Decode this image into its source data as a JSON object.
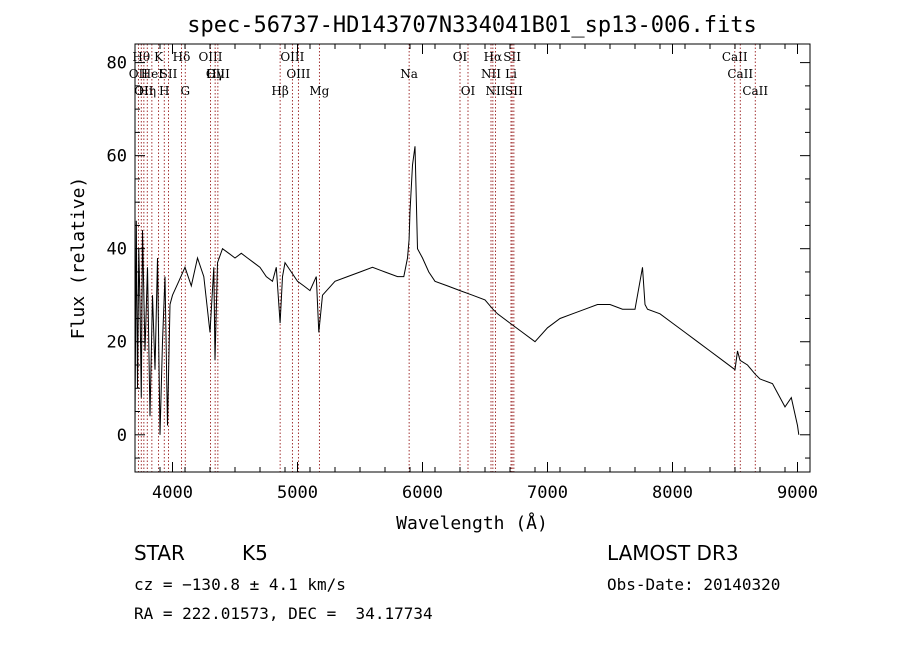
{
  "chart_data": {
    "type": "line",
    "title": "spec-56737-HD143707N334041B01_sp13-006.fits",
    "xlabel": "Wavelength (Å)",
    "ylabel": "Flux (relative)",
    "xlim": [
      3700,
      9100
    ],
    "ylim": [
      -8,
      84
    ],
    "xticks": [
      4000,
      5000,
      6000,
      7000,
      8000,
      9000
    ],
    "yticks": [
      0,
      20,
      40,
      60,
      80
    ],
    "grid": false,
    "line_color": "#000000",
    "marker_color": "#8b0000",
    "series": [
      {
        "x": [
          3700,
          3710,
          3720,
          3730,
          3740,
          3750,
          3760,
          3780,
          3800,
          3820,
          3840,
          3860,
          3880,
          3900,
          3920,
          3940,
          3960,
          3980,
          4000,
          4050,
          4100,
          4150,
          4200,
          4250,
          4300,
          4330,
          4340,
          4360,
          4400,
          4450,
          4500,
          4550,
          4600,
          4650,
          4700,
          4750,
          4800,
          4830,
          4861,
          4880,
          4900,
          4950,
          5000,
          5050,
          5100,
          5150,
          5170,
          5200,
          5300,
          5400,
          5500,
          5600,
          5700,
          5800,
          5850,
          5880,
          5893,
          5900,
          5920,
          5940,
          5960,
          6000,
          6050,
          6100,
          6200,
          6300,
          6400,
          6500,
          6563,
          6600,
          6700,
          6800,
          6900,
          7000,
          7100,
          7200,
          7300,
          7400,
          7500,
          7600,
          7700,
          7760,
          7780,
          7800,
          7900,
          8000,
          8100,
          8200,
          8300,
          8400,
          8500,
          8520,
          8540,
          8600,
          8662,
          8700,
          8800,
          8900,
          8950,
          9000,
          9010
        ],
        "y": [
          2,
          46,
          10,
          40,
          28,
          8,
          44,
          18,
          36,
          4,
          30,
          14,
          38,
          0,
          20,
          34,
          2,
          28,
          30,
          33,
          36,
          32,
          38,
          34,
          22,
          36,
          16,
          37,
          40,
          39,
          38,
          39,
          38,
          37,
          36,
          34,
          33,
          36,
          24,
          34,
          37,
          35,
          33,
          32,
          31,
          34,
          22,
          30,
          33,
          34,
          35,
          36,
          35,
          34,
          34,
          38,
          42,
          48,
          58,
          62,
          40,
          38,
          35,
          33,
          32,
          31,
          30,
          29,
          27,
          26,
          24,
          22,
          20,
          23,
          25,
          26,
          27,
          28,
          28,
          27,
          27,
          36,
          28,
          27,
          26,
          24,
          22,
          20,
          18,
          16,
          14,
          18,
          16,
          15,
          13,
          12,
          11,
          6,
          8,
          2,
          0
        ]
      }
    ],
    "lines": [
      {
        "x": 3727,
        "label": "OII",
        "row": 1
      },
      {
        "x": 3750,
        "label": "Hθ",
        "row": 0
      },
      {
        "x": 3771,
        "label": "OII",
        "row": 2
      },
      {
        "x": 3798,
        "label": "Hη",
        "row": 2
      },
      {
        "x": 3835,
        "label": "HeI",
        "row": 1
      },
      {
        "x": 3889,
        "label": "K",
        "row": 0
      },
      {
        "x": 3934,
        "label": "H",
        "row": 2
      },
      {
        "x": 3968,
        "label": "SII",
        "row": 1
      },
      {
        "x": 4072,
        "label": "Hδ",
        "row": 0
      },
      {
        "x": 4102,
        "label": "G",
        "row": 2
      },
      {
        "x": 4304,
        "label": "OIII",
        "row": 0
      },
      {
        "x": 4341,
        "label": "Hγ",
        "row": 1
      },
      {
        "x": 4363,
        "label": "OIII",
        "row": 1
      },
      {
        "x": 4861,
        "label": "Hβ",
        "row": 2
      },
      {
        "x": 4959,
        "label": "OIII",
        "row": 0
      },
      {
        "x": 5007,
        "label": "OIII",
        "row": 1
      },
      {
        "x": 5175,
        "label": "Mg",
        "row": 2
      },
      {
        "x": 5893,
        "label": "Na",
        "row": 1
      },
      {
        "x": 6300,
        "label": "OI",
        "row": 0
      },
      {
        "x": 6364,
        "label": "OI",
        "row": 2
      },
      {
        "x": 6548,
        "label": "NII",
        "row": 1
      },
      {
        "x": 6563,
        "label": "Hα",
        "row": 0
      },
      {
        "x": 6584,
        "label": "NII",
        "row": 2
      },
      {
        "x": 6708,
        "label": "Li",
        "row": 1
      },
      {
        "x": 6717,
        "label": "SII",
        "row": 0
      },
      {
        "x": 6731,
        "label": "SII",
        "row": 2
      },
      {
        "x": 8498,
        "label": "CaII",
        "row": 0
      },
      {
        "x": 8542,
        "label": "CaII",
        "row": 1
      },
      {
        "x": 8662,
        "label": "CaII",
        "row": 2
      }
    ]
  },
  "info": {
    "class": "STAR",
    "subclass": "K5",
    "survey": "LAMOST DR3",
    "cz": "cz = −130.8 ± 4.1 km/s",
    "obs_date": "Obs-Date: 20140320",
    "coords": "RA = 222.01573, DEC =  34.17734"
  }
}
